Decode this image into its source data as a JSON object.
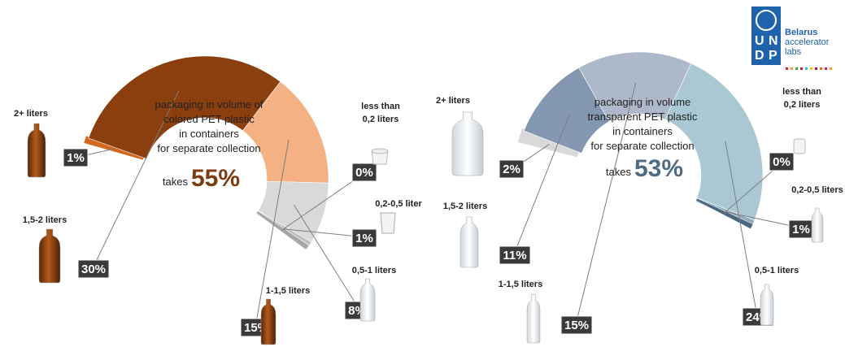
{
  "logo": {
    "letters": [
      "U",
      "N",
      "D",
      "P"
    ],
    "org": "Belarus",
    "line2": "accelerator",
    "line3": "labs",
    "dot_colors": [
      "#e5243b",
      "#dda63a",
      "#4c9f38",
      "#c5192d",
      "#26bde2",
      "#fcc30b",
      "#a21942",
      "#fd6925",
      "#dd1367",
      "#fd9d24"
    ]
  },
  "chart_data": [
    {
      "type": "pie",
      "style": "semicircle-donut",
      "headline": [
        "packaging in volume of",
        "colored PET plastic",
        "in containers",
        "for separate collection"
      ],
      "takes_label": "takes",
      "total_label": "55%",
      "total_color": "#7f3b10",
      "categories": [
        "2+ liters",
        "1,5-2 liters",
        "1-1,5 liters",
        "0,5-1 liters",
        "0,2-0,5 liter",
        "less than 0,2 liters"
      ],
      "values": [
        1,
        30,
        15,
        8,
        1,
        0
      ],
      "labels": [
        "1%",
        "30%",
        "15%",
        "8%",
        "1%",
        "0%"
      ],
      "colors": [
        "#d2691e",
        "#8b3f0f",
        "#f4b183",
        "#d9d9d9",
        "#bfbfbf",
        "#a6a6a6"
      ]
    },
    {
      "type": "pie",
      "style": "semicircle-donut",
      "headline": [
        "packaging in volume",
        "transparent PET plastic",
        "in containers",
        "for separate collection"
      ],
      "takes_label": "takes",
      "total_label": "53%",
      "total_color": "#4f6b82",
      "categories": [
        "2+ liters",
        "1,5-2 liters",
        "1-1,5 liters",
        "0,5-1 liters",
        "0,2-0,5 liters",
        "less than 0,2 liters"
      ],
      "values": [
        2,
        11,
        15,
        24,
        1,
        0
      ],
      "labels": [
        "2%",
        "11%",
        "15%",
        "24%",
        "1%",
        "0%"
      ],
      "colors": [
        "#d9d9d9",
        "#8497b0",
        "#adb9ca",
        "#a9c8d3",
        "#8fa9bd",
        "#4a6880"
      ]
    }
  ]
}
